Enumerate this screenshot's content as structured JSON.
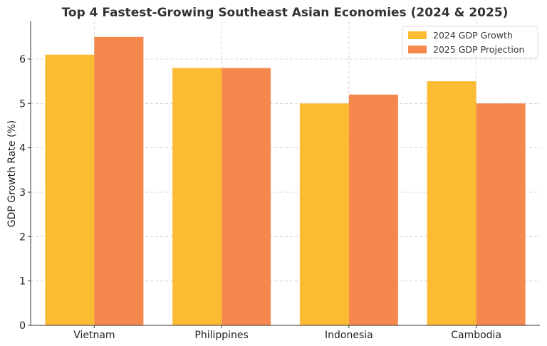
{
  "chart_data": {
    "type": "bar",
    "title": "Top 4 Fastest-Growing Southeast Asian Economies (2024 & 2025)",
    "xlabel": "",
    "ylabel": "GDP Growth Rate (%)",
    "categories": [
      "Vietnam",
      "Philippines",
      "Indonesia",
      "Cambodia"
    ],
    "series": [
      {
        "name": "2024 GDP Growth",
        "values": [
          6.1,
          5.8,
          5.0,
          5.5
        ],
        "color": "#FBBC34"
      },
      {
        "name": "2025 GDP Projection",
        "values": [
          6.5,
          5.8,
          5.2,
          5.0
        ],
        "color": "#F5894D"
      }
    ],
    "ylim": [
      0,
      6.85
    ],
    "yticks": [
      0,
      1,
      2,
      3,
      4,
      5,
      6
    ],
    "grid": true,
    "legend_position": "top-right"
  }
}
